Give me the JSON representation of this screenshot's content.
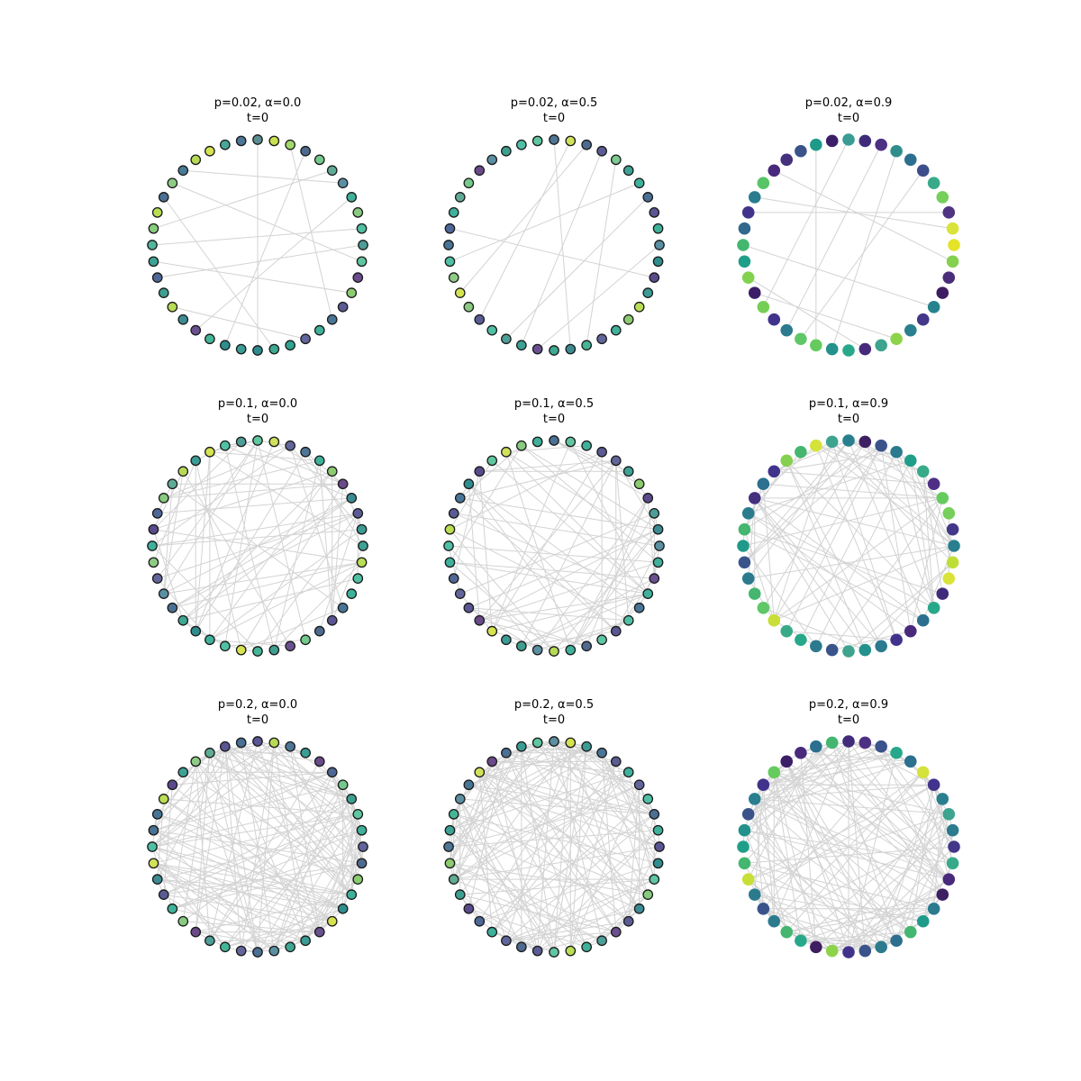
{
  "figure": {
    "panels": [
      {
        "title": "p=0.02, α=0.0",
        "subtitle": "t=0",
        "p": 0.02,
        "alpha": 0.0,
        "node_outline": true,
        "node_colors": [
          "#5b8e91",
          "#c9e050",
          "#a3d96a",
          "#4f6a8f",
          "#75c88c",
          "#60ab95",
          "#5b8fa2",
          "#3fb19a",
          "#88ca80",
          "#50c0a5",
          "#4e9e98",
          "#5fc7a0",
          "#6a4a8a",
          "#8ccb70",
          "#5b5b94",
          "#487596",
          "#3fb19a",
          "#62659b",
          "#30a48e",
          "#3ea892",
          "#2e8a8c",
          "#3b9c94",
          "#2f8d8e",
          "#45b597",
          "#6a5090",
          "#3c8b93",
          "#b7dc55",
          "#3e9f8f",
          "#4e6797",
          "#3da294",
          "#52b69e",
          "#87cc7c",
          "#b9de54",
          "#4a7094",
          "#8ecc86",
          "#477b96",
          "#b7da56",
          "#d6e351",
          "#48a698",
          "#4e7697"
        ],
        "edges": [
          [
            2,
            15
          ],
          [
            6,
            35
          ],
          [
            7,
            24
          ],
          [
            9,
            30
          ],
          [
            11,
            34
          ],
          [
            0,
            20
          ],
          [
            3,
            22
          ],
          [
            5,
            31
          ],
          [
            13,
            29
          ],
          [
            17,
            26
          ],
          [
            19,
            33
          ],
          [
            10,
            28
          ]
        ]
      },
      {
        "title": "p=0.02, α=0.5",
        "subtitle": "t=0",
        "p": 0.02,
        "alpha": 0.5,
        "node_outline": true,
        "node_colors": [
          "#4e7697",
          "#d1e15a",
          "#4f6a8f",
          "#5b5b94",
          "#7bcb90",
          "#3da294",
          "#3fb19a",
          "#4a7094",
          "#5a5593",
          "#3fb19a",
          "#5a8fa2",
          "#2f8d8e",
          "#5a4a8c",
          "#3a9c94",
          "#b9de54",
          "#8ccb70",
          "#3fb19a",
          "#62659b",
          "#45b597",
          "#3c8b93",
          "#3ea892",
          "#6a5090",
          "#3da294",
          "#4e9e98",
          "#50c0a5",
          "#5b5b94",
          "#88ca80",
          "#d6e351",
          "#8ecc86",
          "#50c0a5",
          "#487596",
          "#4e6797",
          "#3fb19a",
          "#60ab95",
          "#75c88c",
          "#6a4a8a",
          "#5b8fa2",
          "#3e9f8f",
          "#50c0a5",
          "#5fc7a0"
        ],
        "edges": [
          [
            1,
            25
          ],
          [
            2,
            27
          ],
          [
            4,
            18
          ],
          [
            3,
            22
          ],
          [
            6,
            29
          ],
          [
            7,
            23
          ],
          [
            10,
            21
          ],
          [
            12,
            31
          ],
          [
            0,
            19
          ]
        ]
      },
      {
        "title": "p=0.02, α=0.9",
        "subtitle": "t=0",
        "p": 0.02,
        "alpha": 0.9,
        "node_outline": false,
        "node_colors": [
          "#3b9c94",
          "#3f2b7a",
          "#4d2f84",
          "#2f8e8c",
          "#2c6f8e",
          "#3d4e8a",
          "#38aa8a",
          "#75cf5a",
          "#4f3482",
          "#d9e33a",
          "#e4e32a",
          "#85d04f",
          "#4b2e7a",
          "#3e1e60",
          "#26838e",
          "#43378a",
          "#2a7f8f",
          "#8cd34a",
          "#3ea38f",
          "#472a7c",
          "#27a88a",
          "#23918c",
          "#65cb5e",
          "#5fc768",
          "#2b7a8e",
          "#41338b",
          "#76cf55",
          "#3c1e68",
          "#82d14f",
          "#1f9e89",
          "#44b66f",
          "#32678e",
          "#41338b",
          "#2a7b8e",
          "#58c466",
          "#48297c",
          "#45307e",
          "#3a538b",
          "#1f9a8a",
          "#3c1e68"
        ],
        "edges": [
          [
            5,
            23
          ],
          [
            11,
            35
          ],
          [
            14,
            30
          ],
          [
            17,
            27
          ],
          [
            8,
            32
          ],
          [
            3,
            21
          ],
          [
            0,
            26
          ],
          [
            2,
            24
          ],
          [
            19,
            28
          ],
          [
            9,
            33
          ],
          [
            22,
            38
          ]
        ]
      },
      {
        "title": "p=0.1, α=0.0",
        "subtitle": "t=0",
        "p": 0.1,
        "alpha": 0.0,
        "node_outline": true,
        "node_colors": [
          "#5fc7a0",
          "#d1e15a",
          "#62659b",
          "#4e7697",
          "#3fb19a",
          "#8ccb70",
          "#6a4a8a",
          "#3c8b93",
          "#5b5b94",
          "#3a9c94",
          "#3da294",
          "#b9de54",
          "#50c0a5",
          "#3fb19a",
          "#487596",
          "#5a5593",
          "#4f6a8f",
          "#75c88c",
          "#6a5090",
          "#3e9f8f",
          "#45b597",
          "#d6e351",
          "#50c0a5",
          "#3fb19a",
          "#2f8d8e",
          "#3ea892",
          "#4a7094",
          "#5b8fa2",
          "#62659b",
          "#8ecc86",
          "#3fb19a",
          "#5a4a8c",
          "#4e6797",
          "#88ca80",
          "#60ab95",
          "#b7da56",
          "#3b9c94",
          "#d6e351",
          "#50c0a5",
          "#4e9e98"
        ],
        "edges": []
      },
      {
        "title": "p=0.1, α=0.5",
        "subtitle": "t=0",
        "p": 0.1,
        "alpha": 0.5,
        "node_outline": true,
        "node_colors": [
          "#4a7094",
          "#5fc7a0",
          "#3fb19a",
          "#5b5b94",
          "#62659b",
          "#3da294",
          "#8ccb70",
          "#5a4a8c",
          "#4e9e98",
          "#3c8b93",
          "#5b8fa2",
          "#3fb19a",
          "#6a5090",
          "#3fb19a",
          "#487596",
          "#50c0a5",
          "#5a5593",
          "#5fc7a0",
          "#4f6a8f",
          "#3fb19a",
          "#b7da56",
          "#5b8fa2",
          "#3e9f8f",
          "#3a9c94",
          "#d6e351",
          "#6a4a8a",
          "#5a5593",
          "#62659b",
          "#4e6797",
          "#3fb19a",
          "#50c0a5",
          "#b9de54",
          "#5b5b94",
          "#487596",
          "#2f8d8e",
          "#5a4a8c",
          "#5fc7a0",
          "#d1e15a",
          "#88ca80",
          "#3fb19a"
        ],
        "edges": []
      },
      {
        "title": "p=0.1, α=0.9",
        "subtitle": "t=0",
        "p": 0.1,
        "alpha": 0.9,
        "node_outline": false,
        "node_colors": [
          "#2a7f8f",
          "#3d1f62",
          "#3a538b",
          "#2b7a8e",
          "#1f9e89",
          "#38aa8a",
          "#4d2f84",
          "#65cb5e",
          "#75cf5a",
          "#43378a",
          "#2a7f8f",
          "#bede37",
          "#d9e33a",
          "#3f2b7a",
          "#27a88a",
          "#2c6f8e",
          "#48297c",
          "#41338b",
          "#2b7a8e",
          "#23918c",
          "#3ea38f",
          "#3a538b",
          "#2b7a8e",
          "#27a88a",
          "#38aa8a",
          "#c7df36",
          "#5fc768",
          "#44b66f",
          "#2b7a8e",
          "#3a538b",
          "#1f9a8a",
          "#44b66f",
          "#2a7b8e",
          "#45307e",
          "#2c6f8e",
          "#41338b",
          "#85d04f",
          "#44b66f",
          "#d4e23a",
          "#3ea38f"
        ],
        "edges": []
      },
      {
        "title": "p=0.2, α=0.0",
        "subtitle": "t=0",
        "p": 0.2,
        "alpha": 0.0,
        "node_outline": true,
        "node_colors": [
          "#5a5593",
          "#b7da56",
          "#4e7697",
          "#3b9c94",
          "#6a4a8a",
          "#4e6797",
          "#75c88c",
          "#3e9f8f",
          "#5fc7a0",
          "#3fb19a",
          "#62659b",
          "#4f6a8f",
          "#8ccb70",
          "#3fb19a",
          "#2f8d8e",
          "#d6e351",
          "#6a5090",
          "#3a9c94",
          "#3ea892",
          "#5b8fa2",
          "#4a7094",
          "#62659b",
          "#45b597",
          "#4e9e98",
          "#6a4a8a",
          "#88ca80",
          "#3fb19a",
          "#5b5b94",
          "#3c8b93",
          "#d1e15a",
          "#50c0a5",
          "#4a7094",
          "#487596",
          "#b9de54",
          "#5a4a8c",
          "#3da294",
          "#8ecc86",
          "#60ab95",
          "#5a5593",
          "#4a7094"
        ],
        "edges": []
      },
      {
        "title": "p=0.2, α=0.5",
        "subtitle": "t=0",
        "p": 0.2,
        "alpha": 0.5,
        "node_outline": true,
        "node_colors": [
          "#5b8fa2",
          "#d6e351",
          "#3a9c94",
          "#487596",
          "#5b5b94",
          "#3fb19a",
          "#62659b",
          "#50c0a5",
          "#4a7094",
          "#3fb19a",
          "#5a5593",
          "#2f8d8e",
          "#5fc7a0",
          "#88ca80",
          "#3c8b93",
          "#5b5b94",
          "#6a5090",
          "#4e9e98",
          "#3fb19a",
          "#b9de54",
          "#5fc7a0",
          "#5b5b94",
          "#4f6a8f",
          "#62659b",
          "#3fb19a",
          "#4e6797",
          "#5a4a8c",
          "#3e9f8f",
          "#60ab95",
          "#8ccb70",
          "#4e7697",
          "#3da294",
          "#45b597",
          "#5b8fa2",
          "#487596",
          "#d1e15a",
          "#6a4a8a",
          "#4a7094",
          "#3b9c94",
          "#5fc7a0"
        ],
        "edges": []
      },
      {
        "title": "p=0.2, α=0.9",
        "subtitle": "t=0",
        "p": 0.2,
        "alpha": 0.9,
        "node_outline": false,
        "node_colors": [
          "#3f2b7a",
          "#4d2f84",
          "#3a538b",
          "#27a88a",
          "#2c6f8e",
          "#d4e23a",
          "#41338b",
          "#2a7f8f",
          "#3ea38f",
          "#2b7a8e",
          "#43378a",
          "#38aa8a",
          "#48297c",
          "#3d1f62",
          "#2b7a8e",
          "#1f9a8a",
          "#44b66f",
          "#2c6f8e",
          "#2b7a8e",
          "#3a538b",
          "#41338b",
          "#8cd34a",
          "#3e1e60",
          "#27a88a",
          "#44b66f",
          "#2a7b8e",
          "#3a538b",
          "#2b7a8e",
          "#c7df36",
          "#44b66f",
          "#1f9e89",
          "#23918c",
          "#3a538b",
          "#2a7f8f",
          "#41338b",
          "#65cb5e",
          "#3c1e68",
          "#48297c",
          "#2c6f8e",
          "#44b66f"
        ],
        "edges": []
      }
    ]
  }
}
